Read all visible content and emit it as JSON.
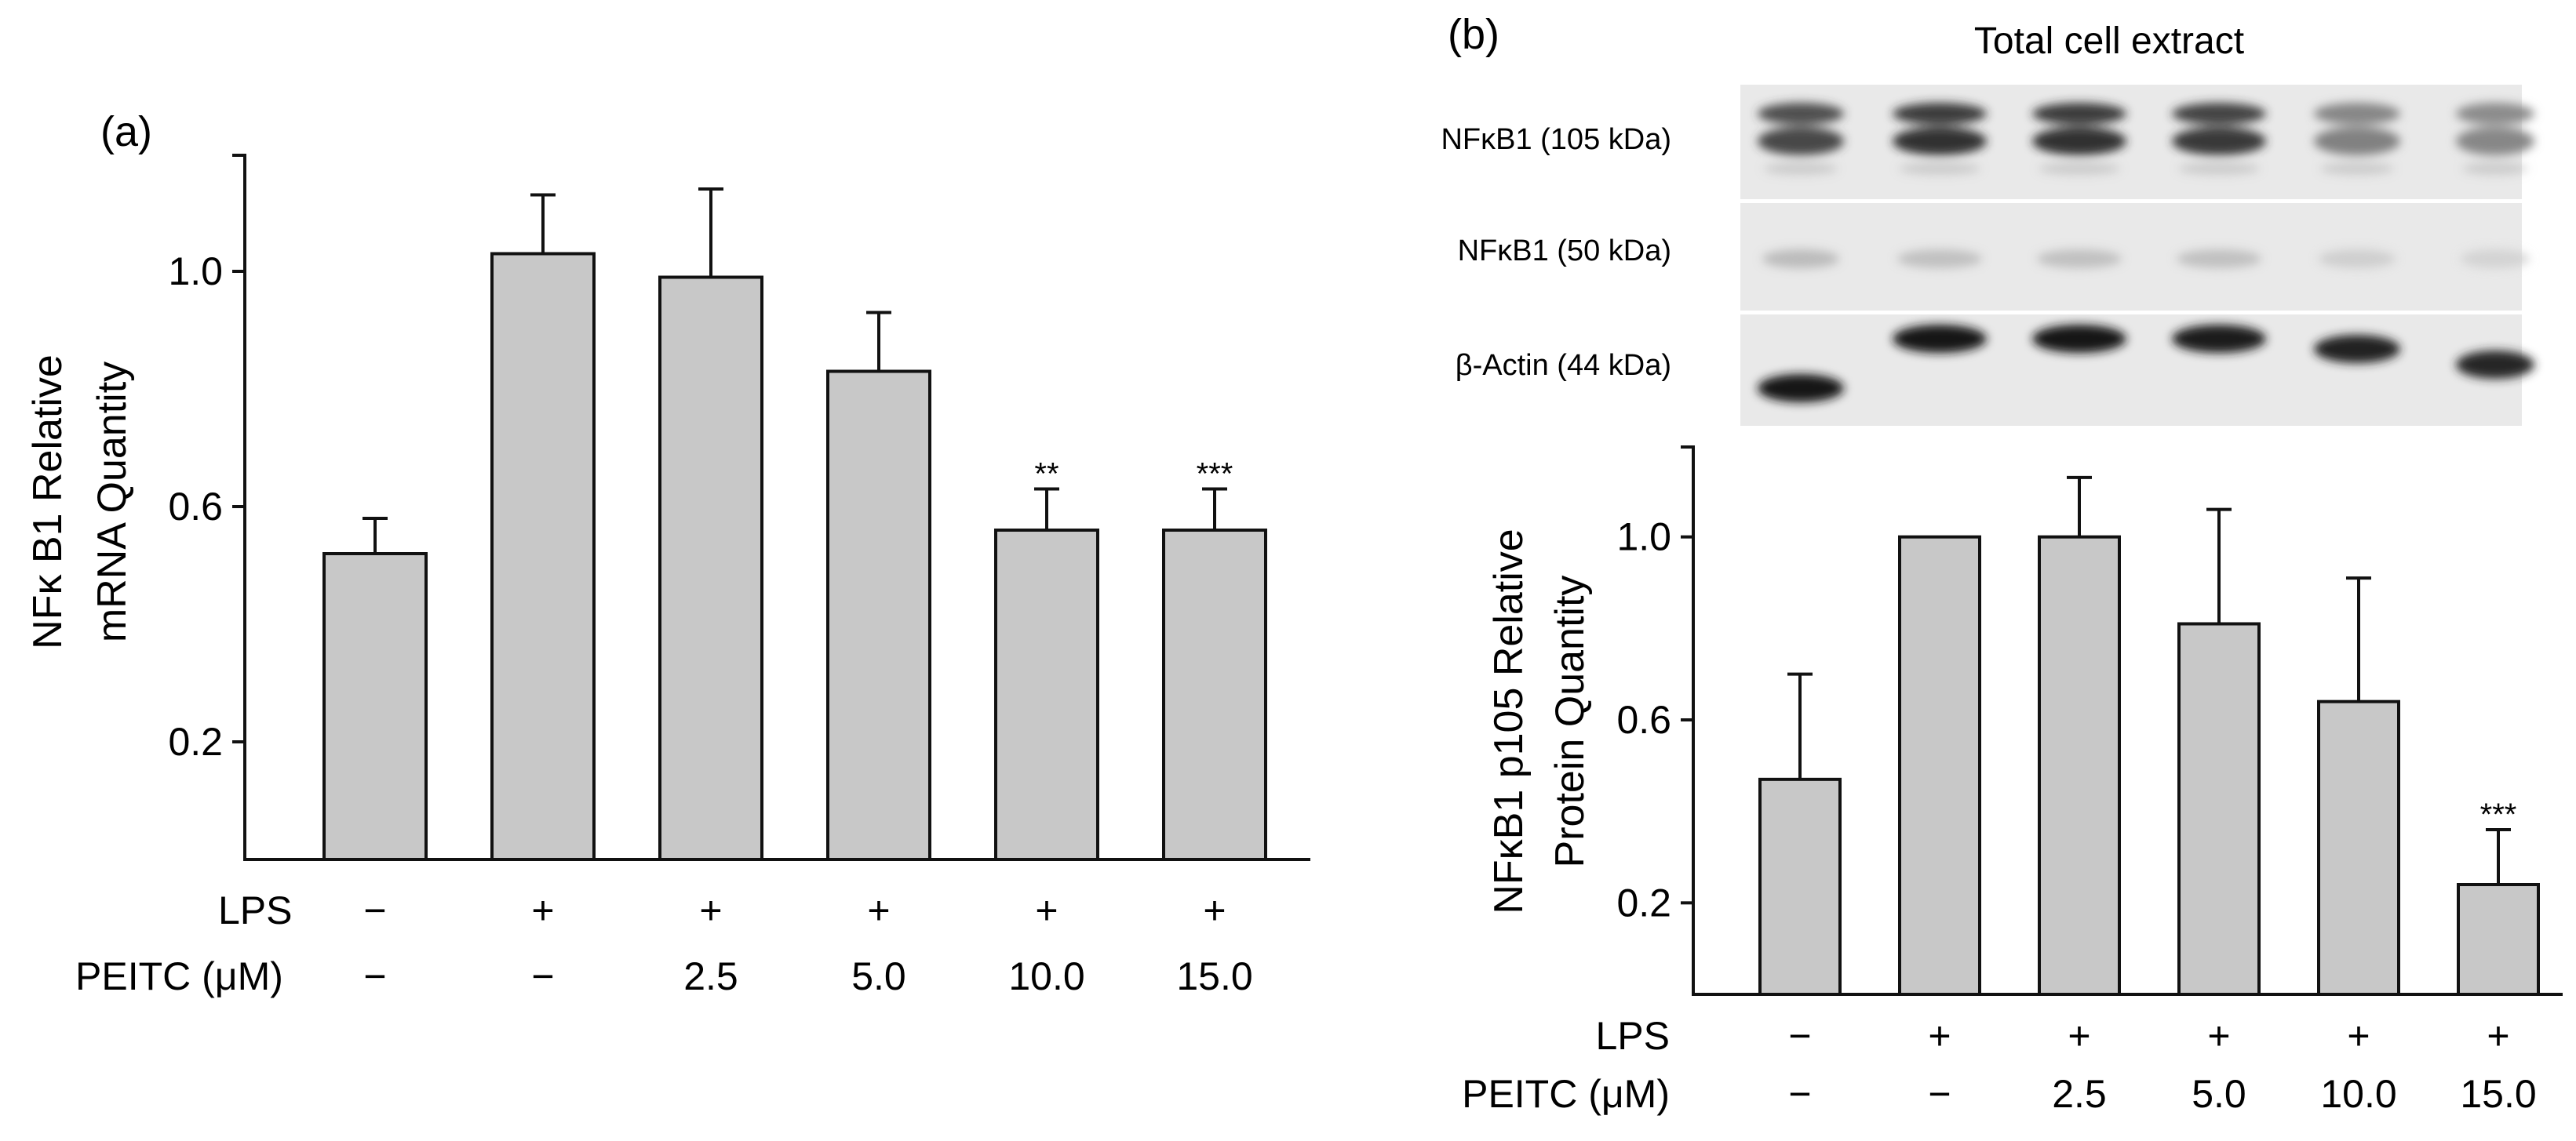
{
  "panel_a": {
    "label": "(a)",
    "y_title_line1": "NFκ B1 Relative",
    "y_title_line2": "mRNA Quantity",
    "row1_label": "LPS",
    "row2_label": "PEITC (μM)",
    "lps": [
      "−",
      "+",
      "+",
      "+",
      "+",
      "+"
    ],
    "peitc": [
      "−",
      "−",
      "2.5",
      "5.0",
      "10.0",
      "15.0"
    ]
  },
  "panel_b": {
    "label": "(b)",
    "blot_title": "Total cell extract",
    "blot_rows": [
      "NFκB1 (105 kDa)",
      "NFκB1 (50 kDa)",
      "β-Actin (44 kDa)"
    ],
    "y_title_line1": "NFκB1 p105 Relative",
    "y_title_line2": "Protein Quantity",
    "row1_label": "LPS",
    "row2_label": "PEITC (μM)",
    "lps": [
      "−",
      "+",
      "+",
      "+",
      "+",
      "+"
    ],
    "peitc": [
      "−",
      "−",
      "2.5",
      "5.0",
      "10.0",
      "15.0"
    ]
  },
  "chart_data": [
    {
      "type": "bar",
      "panel": "(a)",
      "categories": [
        "LPS − / PEITC −",
        "LPS + / PEITC −",
        "LPS + / PEITC 2.5",
        "LPS + / PEITC 5.0",
        "LPS + / PEITC 10.0",
        "LPS + / PEITC 15.0"
      ],
      "values": [
        0.52,
        1.03,
        0.99,
        0.83,
        0.56,
        0.56
      ],
      "errors": [
        0.06,
        0.1,
        0.15,
        0.1,
        0.07,
        0.07
      ],
      "significance": [
        "",
        "",
        "",
        "",
        "**",
        "***"
      ],
      "ylabel": "NFκ B1 Relative mRNA Quantity",
      "yticks": [
        0.2,
        0.6,
        1.0
      ],
      "ylim": [
        0.0,
        1.2
      ],
      "bar_color": "#c8c8c8"
    },
    {
      "type": "bar",
      "panel": "(b)",
      "categories": [
        "LPS − / PEITC −",
        "LPS + / PEITC −",
        "LPS + / PEITC 2.5",
        "LPS + / PEITC 5.0",
        "LPS + / PEITC 10.0",
        "LPS + / PEITC 15.0"
      ],
      "values": [
        0.47,
        1.0,
        1.0,
        0.81,
        0.64,
        0.24
      ],
      "errors": [
        0.23,
        0.0,
        0.13,
        0.25,
        0.27,
        0.12
      ],
      "significance": [
        "",
        "",
        "",
        "",
        "",
        "***"
      ],
      "ylabel": "NFκB1 p105 Relative Protein Quantity",
      "yticks": [
        0.2,
        0.6,
        1.0
      ],
      "ylim": [
        0.0,
        1.2
      ],
      "bar_color": "#c8c8c8"
    }
  ]
}
